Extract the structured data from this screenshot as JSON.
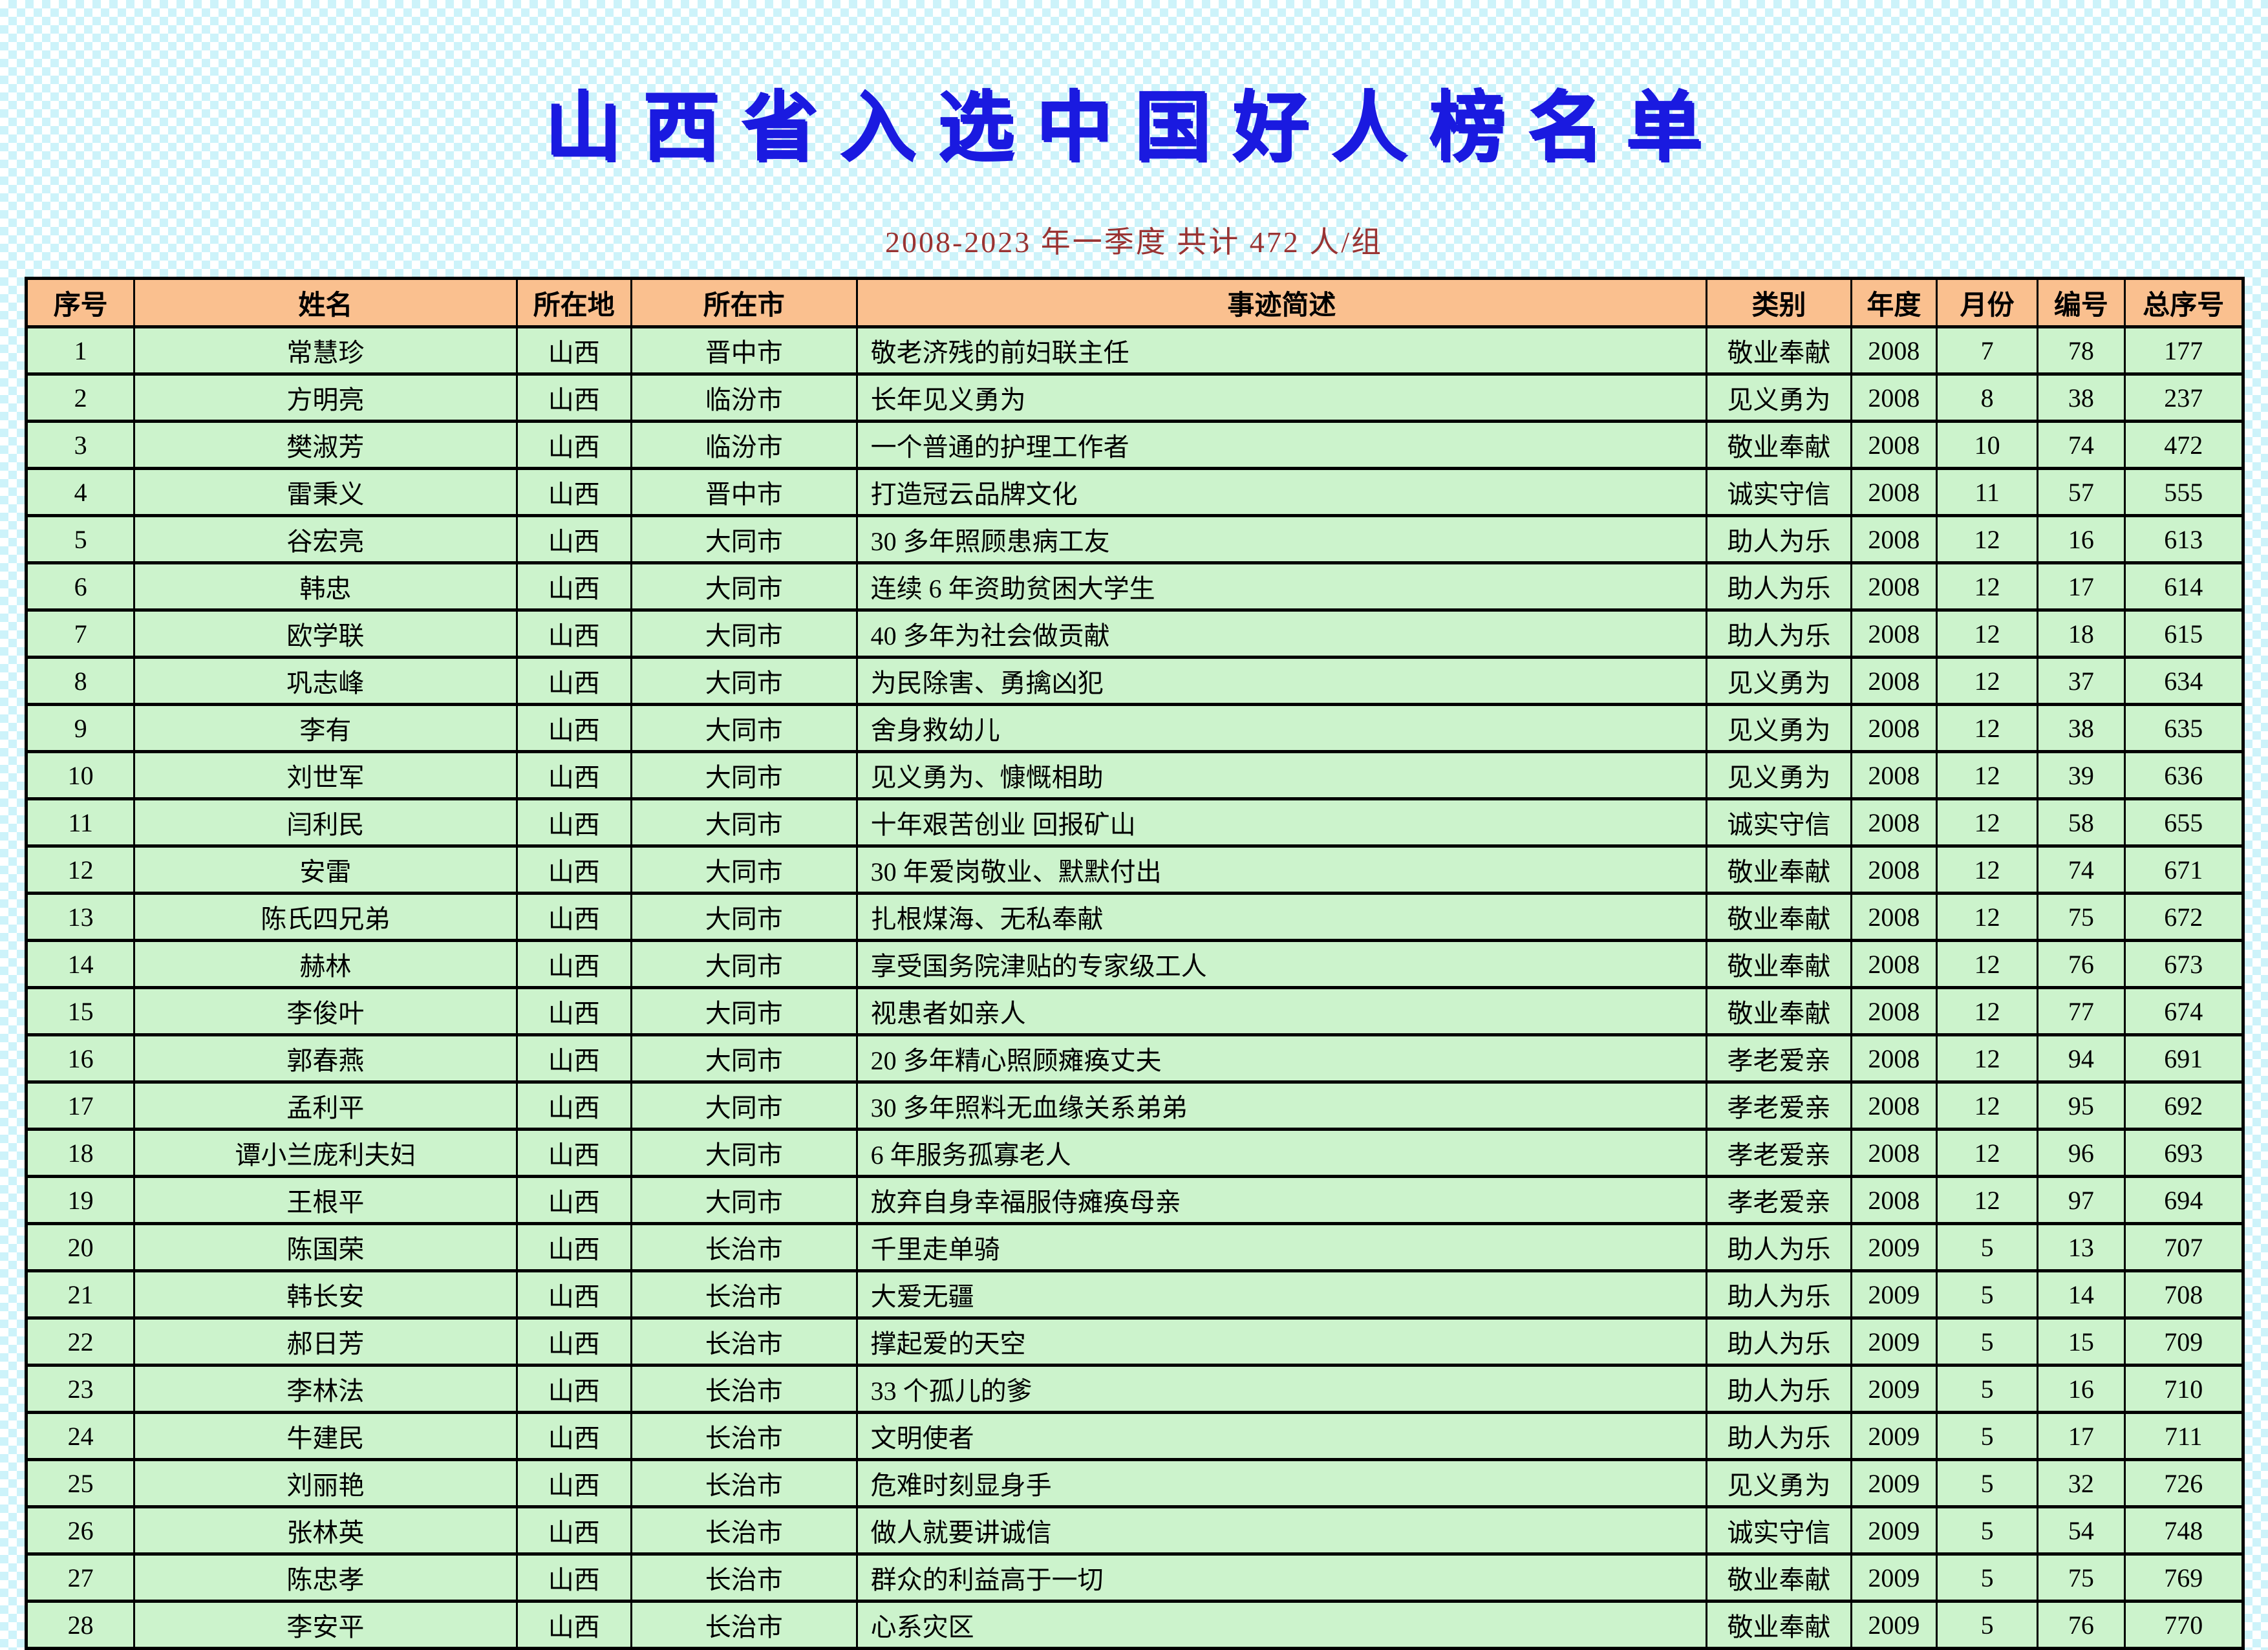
{
  "page": {
    "title": "山西省入选中国好人榜名单",
    "subtitle": "2008-2023 年一季度 共计 472 人/组"
  },
  "colors": {
    "title_blue": "#1a1ae0",
    "subtitle_red": "#993333",
    "header_bg": "#fac08f",
    "row_bg": "#ccf3cc",
    "checker_cyan": "#cdf3fa"
  },
  "table": {
    "headers": [
      "序号",
      "姓名",
      "所在地",
      "所在市",
      "事迹简述",
      "类别",
      "年度",
      "月份",
      "编号",
      "总序号"
    ],
    "rows": [
      [
        "1",
        "常慧珍",
        "山西",
        "晋中市",
        "敬老济残的前妇联主任",
        "敬业奉献",
        "2008",
        "7",
        "78",
        "177"
      ],
      [
        "2",
        "方明亮",
        "山西",
        "临汾市",
        "长年见义勇为",
        "见义勇为",
        "2008",
        "8",
        "38",
        "237"
      ],
      [
        "3",
        "樊淑芳",
        "山西",
        "临汾市",
        "一个普通的护理工作者",
        "敬业奉献",
        "2008",
        "10",
        "74",
        "472"
      ],
      [
        "4",
        "雷秉义",
        "山西",
        "晋中市",
        "打造冠云品牌文化",
        "诚实守信",
        "2008",
        "11",
        "57",
        "555"
      ],
      [
        "5",
        "谷宏亮",
        "山西",
        "大同市",
        "30 多年照顾患病工友",
        "助人为乐",
        "2008",
        "12",
        "16",
        "613"
      ],
      [
        "6",
        "韩忠",
        "山西",
        "大同市",
        "连续 6 年资助贫困大学生",
        "助人为乐",
        "2008",
        "12",
        "17",
        "614"
      ],
      [
        "7",
        "欧学联",
        "山西",
        "大同市",
        "40 多年为社会做贡献",
        "助人为乐",
        "2008",
        "12",
        "18",
        "615"
      ],
      [
        "8",
        "巩志峰",
        "山西",
        "大同市",
        "为民除害、勇擒凶犯",
        "见义勇为",
        "2008",
        "12",
        "37",
        "634"
      ],
      [
        "9",
        "李有",
        "山西",
        "大同市",
        "舍身救幼儿",
        "见义勇为",
        "2008",
        "12",
        "38",
        "635"
      ],
      [
        "10",
        "刘世军",
        "山西",
        "大同市",
        "见义勇为、慷慨相助",
        "见义勇为",
        "2008",
        "12",
        "39",
        "636"
      ],
      [
        "11",
        "闫利民",
        "山西",
        "大同市",
        "十年艰苦创业 回报矿山",
        "诚实守信",
        "2008",
        "12",
        "58",
        "655"
      ],
      [
        "12",
        "安雷",
        "山西",
        "大同市",
        "30 年爱岗敬业、默默付出",
        "敬业奉献",
        "2008",
        "12",
        "74",
        "671"
      ],
      [
        "13",
        "陈氏四兄弟",
        "山西",
        "大同市",
        "扎根煤海、无私奉献",
        "敬业奉献",
        "2008",
        "12",
        "75",
        "672"
      ],
      [
        "14",
        "赫林",
        "山西",
        "大同市",
        "享受国务院津贴的专家级工人",
        "敬业奉献",
        "2008",
        "12",
        "76",
        "673"
      ],
      [
        "15",
        "李俊叶",
        "山西",
        "大同市",
        "视患者如亲人",
        "敬业奉献",
        "2008",
        "12",
        "77",
        "674"
      ],
      [
        "16",
        "郭春燕",
        "山西",
        "大同市",
        "20 多年精心照顾瘫痪丈夫",
        "孝老爱亲",
        "2008",
        "12",
        "94",
        "691"
      ],
      [
        "17",
        "孟利平",
        "山西",
        "大同市",
        "30 多年照料无血缘关系弟弟",
        "孝老爱亲",
        "2008",
        "12",
        "95",
        "692"
      ],
      [
        "18",
        "谭小兰庞利夫妇",
        "山西",
        "大同市",
        "6 年服务孤寡老人",
        "孝老爱亲",
        "2008",
        "12",
        "96",
        "693"
      ],
      [
        "19",
        "王根平",
        "山西",
        "大同市",
        "放弃自身幸福服侍瘫痪母亲",
        "孝老爱亲",
        "2008",
        "12",
        "97",
        "694"
      ],
      [
        "20",
        "陈国荣",
        "山西",
        "长治市",
        "千里走单骑",
        "助人为乐",
        "2009",
        "5",
        "13",
        "707"
      ],
      [
        "21",
        "韩长安",
        "山西",
        "长治市",
        "大爱无疆",
        "助人为乐",
        "2009",
        "5",
        "14",
        "708"
      ],
      [
        "22",
        "郝日芳",
        "山西",
        "长治市",
        "撑起爱的天空",
        "助人为乐",
        "2009",
        "5",
        "15",
        "709"
      ],
      [
        "23",
        "李林法",
        "山西",
        "长治市",
        "33 个孤儿的爹",
        "助人为乐",
        "2009",
        "5",
        "16",
        "710"
      ],
      [
        "24",
        "牛建民",
        "山西",
        "长治市",
        "文明使者",
        "助人为乐",
        "2009",
        "5",
        "17",
        "711"
      ],
      [
        "25",
        "刘丽艳",
        "山西",
        "长治市",
        "危难时刻显身手",
        "见义勇为",
        "2009",
        "5",
        "32",
        "726"
      ],
      [
        "26",
        "张林英",
        "山西",
        "长治市",
        "做人就要讲诚信",
        "诚实守信",
        "2009",
        "5",
        "54",
        "748"
      ],
      [
        "27",
        "陈忠孝",
        "山西",
        "长治市",
        "群众的利益高于一切",
        "敬业奉献",
        "2009",
        "5",
        "75",
        "769"
      ],
      [
        "28",
        "李安平",
        "山西",
        "长治市",
        "心系灾区",
        "敬业奉献",
        "2009",
        "5",
        "76",
        "770"
      ]
    ]
  }
}
